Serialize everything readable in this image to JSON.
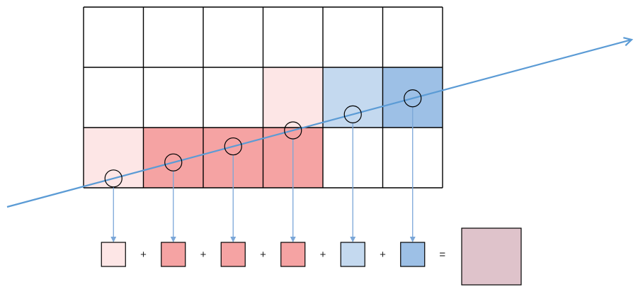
{
  "grid": {
    "rows": 3,
    "cols": 6,
    "cells": [
      [
        "white",
        "white",
        "white",
        "white",
        "white",
        "white"
      ],
      [
        "white",
        "white",
        "white",
        "light-red",
        "light-blue",
        "blue"
      ],
      [
        "light-red",
        "red",
        "red",
        "red",
        "white",
        "white"
      ]
    ]
  },
  "colors": {
    "white": "#ffffff",
    "light-red": "#fde6e6",
    "red": "#f5a3a3",
    "light-blue": "#c4d9ef",
    "blue": "#9dc0e6",
    "result": "#dfc3cb",
    "ray": "#5b9bd5",
    "grid_line": "#000000",
    "arrow": "#7aa6d8"
  },
  "samples": [
    {
      "row": 2,
      "col": 0,
      "color": "light-red"
    },
    {
      "row": 2,
      "col": 1,
      "color": "red"
    },
    {
      "row": 2,
      "col": 2,
      "color": "red"
    },
    {
      "row": 2,
      "col": 3,
      "color": "red"
    },
    {
      "row": 1,
      "col": 4,
      "color": "light-blue"
    },
    {
      "row": 1,
      "col": 5,
      "color": "blue"
    }
  ],
  "equation": {
    "operators": [
      "+",
      "+",
      "+",
      "+",
      "+"
    ],
    "equals": "=",
    "result_color": "result"
  }
}
